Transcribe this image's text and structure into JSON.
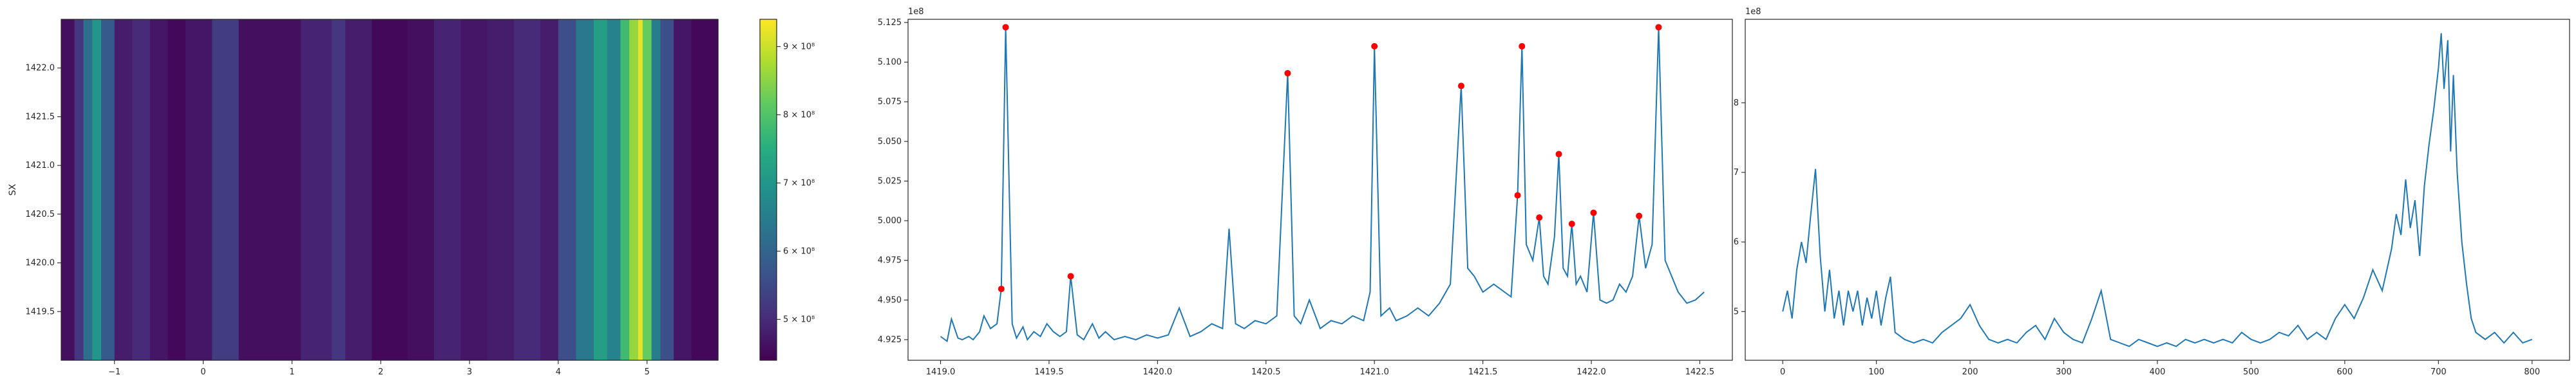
{
  "chart_data": [
    {
      "type": "heatmap",
      "ylabel": "SX",
      "xlim": [
        -1.6,
        5.8
      ],
      "ylim": [
        1419.0,
        1422.5
      ],
      "x_ticks": [
        -1,
        0,
        1,
        2,
        3,
        4,
        5
      ],
      "x_tick_labels": [
        "−1",
        "0",
        "1",
        "2",
        "3",
        "4",
        "5"
      ],
      "y_ticks": [
        1419.5,
        1420.0,
        1420.5,
        1421.0,
        1421.5,
        1422.0
      ],
      "y_tick_labels": [
        "1419.5",
        "1420.0",
        "1420.5",
        "1421.0",
        "1421.5",
        "1422.0"
      ],
      "colorbar": {
        "colormap": "viridis",
        "range": [
          440000000.0,
          940000000.0
        ],
        "tick_values": [
          500000000.0,
          600000000.0,
          700000000.0,
          800000000.0,
          900000000.0
        ],
        "tick_labels": [
          "5 × 10⁸",
          "6 × 10⁸",
          "7 × 10⁸",
          "8 × 10⁸",
          "9 × 10⁸"
        ]
      },
      "column_intensity": [
        {
          "x": -1.6,
          "v": 460000000.0
        },
        {
          "x": -1.45,
          "v": 520000000.0
        },
        {
          "x": -1.35,
          "v": 620000000.0
        },
        {
          "x": -1.25,
          "v": 700000000.0
        },
        {
          "x": -1.15,
          "v": 580000000.0
        },
        {
          "x": -1.0,
          "v": 480000000.0
        },
        {
          "x": -0.8,
          "v": 500000000.0
        },
        {
          "x": -0.6,
          "v": 470000000.0
        },
        {
          "x": -0.4,
          "v": 450000000.0
        },
        {
          "x": -0.2,
          "v": 470000000.0
        },
        {
          "x": 0.1,
          "v": 530000000.0
        },
        {
          "x": 0.4,
          "v": 460000000.0
        },
        {
          "x": 0.8,
          "v": 460000000.0
        },
        {
          "x": 1.1,
          "v": 490000000.0
        },
        {
          "x": 1.45,
          "v": 520000000.0
        },
        {
          "x": 1.6,
          "v": 480000000.0
        },
        {
          "x": 1.9,
          "v": 450000000.0
        },
        {
          "x": 2.3,
          "v": 460000000.0
        },
        {
          "x": 2.6,
          "v": 490000000.0
        },
        {
          "x": 2.9,
          "v": 470000000.0
        },
        {
          "x": 3.2,
          "v": 480000000.0
        },
        {
          "x": 3.5,
          "v": 500000000.0
        },
        {
          "x": 3.8,
          "v": 480000000.0
        },
        {
          "x": 4.0,
          "v": 560000000.0
        },
        {
          "x": 4.2,
          "v": 640000000.0
        },
        {
          "x": 4.4,
          "v": 720000000.0
        },
        {
          "x": 4.55,
          "v": 660000000.0
        },
        {
          "x": 4.7,
          "v": 780000000.0
        },
        {
          "x": 4.8,
          "v": 860000000.0
        },
        {
          "x": 4.9,
          "v": 920000000.0
        },
        {
          "x": 4.95,
          "v": 820000000.0
        },
        {
          "x": 5.05,
          "v": 650000000.0
        },
        {
          "x": 5.15,
          "v": 560000000.0
        },
        {
          "x": 5.3,
          "v": 470000000.0
        },
        {
          "x": 5.5,
          "v": 450000000.0
        },
        {
          "x": 5.8,
          "v": 450000000.0
        }
      ]
    },
    {
      "type": "line",
      "xlim": [
        1418.85,
        1422.65
      ],
      "ylim": [
        491200000.0,
        512700000.0
      ],
      "offset_text": "1e8",
      "x_ticks": [
        1419.0,
        1419.5,
        1420.0,
        1420.5,
        1421.0,
        1421.5,
        1422.0,
        1422.5
      ],
      "x_tick_labels": [
        "1419.0",
        "1419.5",
        "1420.0",
        "1420.5",
        "1421.0",
        "1421.5",
        "1422.0",
        "1422.5"
      ],
      "y_ticks": [
        492500000.0,
        495000000.0,
        497500000.0,
        500000000.0,
        502500000.0,
        505000000.0,
        507500000.0,
        510000000.0,
        512500000.0
      ],
      "y_tick_labels": [
        "4.925",
        "4.950",
        "4.975",
        "5.000",
        "5.025",
        "5.050",
        "5.075",
        "5.100",
        "5.125"
      ],
      "line_color": "#1f77b4",
      "marker_color": "#ff0000",
      "series": [
        {
          "x": [
            1419.0,
            1419.03,
            1419.05,
            1419.08,
            1419.1,
            1419.13,
            1419.15,
            1419.18,
            1419.2,
            1419.23,
            1419.26,
            1419.28,
            1419.3,
            1419.33,
            1419.35,
            1419.38,
            1419.4,
            1419.43,
            1419.46,
            1419.49,
            1419.52,
            1419.55,
            1419.58,
            1419.6,
            1419.63,
            1419.66,
            1419.7,
            1419.73,
            1419.76,
            1419.8,
            1419.85,
            1419.9,
            1419.95,
            1420.0,
            1420.05,
            1420.1,
            1420.15,
            1420.2,
            1420.25,
            1420.3,
            1420.33,
            1420.36,
            1420.4,
            1420.45,
            1420.5,
            1420.55,
            1420.6,
            1420.63,
            1420.66,
            1420.7,
            1420.75,
            1420.8,
            1420.85,
            1420.9,
            1420.95,
            1420.98,
            1421.0,
            1421.03,
            1421.07,
            1421.1,
            1421.15,
            1421.2,
            1421.25,
            1421.3,
            1421.35,
            1421.4,
            1421.43,
            1421.46,
            1421.5,
            1421.55,
            1421.6,
            1421.63,
            1421.66,
            1421.68,
            1421.7,
            1421.73,
            1421.76,
            1421.78,
            1421.8,
            1421.83,
            1421.85,
            1421.87,
            1421.89,
            1421.91,
            1421.93,
            1421.95,
            1421.98,
            1422.01,
            1422.04,
            1422.07,
            1422.1,
            1422.13,
            1422.16,
            1422.19,
            1422.22,
            1422.25,
            1422.28,
            1422.31,
            1422.34,
            1422.37,
            1422.4,
            1422.44,
            1422.48,
            1422.52
          ],
          "y": [
            492700000.0,
            492400000.0,
            493800000.0,
            492600000.0,
            492500000.0,
            492700000.0,
            492500000.0,
            493000000.0,
            494000000.0,
            493200000.0,
            493500000.0,
            495700000.0,
            512200000.0,
            493500000.0,
            492600000.0,
            493300000.0,
            492500000.0,
            493000000.0,
            492700000.0,
            493500000.0,
            493000000.0,
            492700000.0,
            493000000.0,
            496500000.0,
            492800000.0,
            492500000.0,
            493500000.0,
            492600000.0,
            493000000.0,
            492500000.0,
            492700000.0,
            492500000.0,
            492800000.0,
            492600000.0,
            492800000.0,
            494500000.0,
            492700000.0,
            493000000.0,
            493500000.0,
            493200000.0,
            499500000.0,
            493500000.0,
            493200000.0,
            493700000.0,
            493500000.0,
            494000000.0,
            509300000.0,
            494000000.0,
            493500000.0,
            495000000.0,
            493200000.0,
            493700000.0,
            493500000.0,
            494000000.0,
            493700000.0,
            495500000.0,
            511000000.0,
            494000000.0,
            494500000.0,
            493700000.0,
            494000000.0,
            494500000.0,
            494000000.0,
            494800000.0,
            496000000.0,
            508500000.0,
            497000000.0,
            496500000.0,
            495500000.0,
            496000000.0,
            495500000.0,
            495200000.0,
            501600000.0,
            511000000.0,
            498500000.0,
            497500000.0,
            500200000.0,
            496500000.0,
            496000000.0,
            499000000.0,
            504200000.0,
            497000000.0,
            496500000.0,
            499800000.0,
            496000000.0,
            496500000.0,
            495500000.0,
            500500000.0,
            495000000.0,
            494800000.0,
            495000000.0,
            496000000.0,
            495500000.0,
            496500000.0,
            500300000.0,
            497000000.0,
            498500000.0,
            512200000.0,
            497500000.0,
            496500000.0,
            495500000.0,
            494800000.0,
            495000000.0,
            495500000.0
          ]
        }
      ],
      "peaks": [
        {
          "x": 1419.28,
          "y": 495700000.0
        },
        {
          "x": 1419.3,
          "y": 512200000.0
        },
        {
          "x": 1419.6,
          "y": 496500000.0
        },
        {
          "x": 1420.6,
          "y": 509300000.0
        },
        {
          "x": 1421.0,
          "y": 511000000.0
        },
        {
          "x": 1421.4,
          "y": 508500000.0
        },
        {
          "x": 1421.66,
          "y": 501600000.0
        },
        {
          "x": 1421.68,
          "y": 511000000.0
        },
        {
          "x": 1421.76,
          "y": 500200000.0
        },
        {
          "x": 1421.85,
          "y": 504200000.0
        },
        {
          "x": 1421.91,
          "y": 499800000.0
        },
        {
          "x": 1422.01,
          "y": 500500000.0
        },
        {
          "x": 1422.22,
          "y": 500300000.0
        },
        {
          "x": 1422.31,
          "y": 512200000.0
        }
      ]
    },
    {
      "type": "line",
      "xlim": [
        -40,
        840
      ],
      "ylim": [
        430000000.0,
        920000000.0
      ],
      "offset_text": "1e8",
      "x_ticks": [
        0,
        100,
        200,
        300,
        400,
        500,
        600,
        700,
        800
      ],
      "x_tick_labels": [
        "0",
        "100",
        "200",
        "300",
        "400",
        "500",
        "600",
        "700",
        "800"
      ],
      "y_ticks": [
        500000000.0,
        600000000.0,
        700000000.0,
        800000000.0
      ],
      "y_tick_labels": [
        "5",
        "6",
        "7",
        "8"
      ],
      "line_color": "#1f77b4",
      "series": [
        {
          "x": [
            0,
            5,
            10,
            15,
            20,
            25,
            30,
            35,
            40,
            45,
            50,
            55,
            60,
            65,
            70,
            75,
            80,
            85,
            90,
            95,
            100,
            105,
            110,
            115,
            120,
            130,
            140,
            150,
            160,
            170,
            180,
            190,
            200,
            210,
            220,
            230,
            240,
            250,
            260,
            270,
            280,
            290,
            300,
            310,
            320,
            330,
            340,
            350,
            360,
            370,
            380,
            390,
            400,
            410,
            420,
            430,
            440,
            450,
            460,
            470,
            480,
            490,
            500,
            510,
            520,
            530,
            540,
            550,
            560,
            570,
            580,
            590,
            600,
            610,
            620,
            630,
            640,
            650,
            655,
            660,
            665,
            670,
            675,
            680,
            685,
            690,
            695,
            700,
            703,
            706,
            710,
            713,
            716,
            720,
            725,
            730,
            735,
            740,
            750,
            760,
            770,
            780,
            790,
            800
          ],
          "y": [
            500000000.0,
            530000000.0,
            490000000.0,
            560000000.0,
            600000000.0,
            570000000.0,
            640000000.0,
            705000000.0,
            580000000.0,
            500000000.0,
            560000000.0,
            490000000.0,
            530000000.0,
            480000000.0,
            530000000.0,
            500000000.0,
            530000000.0,
            480000000.0,
            520000000.0,
            490000000.0,
            530000000.0,
            480000000.0,
            520000000.0,
            550000000.0,
            470000000.0,
            460000000.0,
            455000000.0,
            460000000.0,
            455000000.0,
            470000000.0,
            480000000.0,
            490000000.0,
            510000000.0,
            480000000.0,
            460000000.0,
            455000000.0,
            460000000.0,
            455000000.0,
            470000000.0,
            480000000.0,
            460000000.0,
            490000000.0,
            470000000.0,
            460000000.0,
            455000000.0,
            490000000.0,
            530000000.0,
            460000000.0,
            455000000.0,
            450000000.0,
            460000000.0,
            455000000.0,
            450000000.0,
            455000000.0,
            450000000.0,
            460000000.0,
            455000000.0,
            460000000.0,
            455000000.0,
            460000000.0,
            455000000.0,
            470000000.0,
            460000000.0,
            455000000.0,
            460000000.0,
            470000000.0,
            465000000.0,
            480000000.0,
            460000000.0,
            470000000.0,
            460000000.0,
            490000000.0,
            510000000.0,
            490000000.0,
            520000000.0,
            560000000.0,
            530000000.0,
            590000000.0,
            640000000.0,
            610000000.0,
            690000000.0,
            620000000.0,
            660000000.0,
            580000000.0,
            680000000.0,
            740000000.0,
            790000000.0,
            850000000.0,
            900000000.0,
            820000000.0,
            890000000.0,
            730000000.0,
            840000000.0,
            700000000.0,
            600000000.0,
            540000000.0,
            490000000.0,
            470000000.0,
            460000000.0,
            470000000.0,
            455000000.0,
            470000000.0,
            455000000.0,
            460000000.0
          ]
        }
      ]
    }
  ]
}
